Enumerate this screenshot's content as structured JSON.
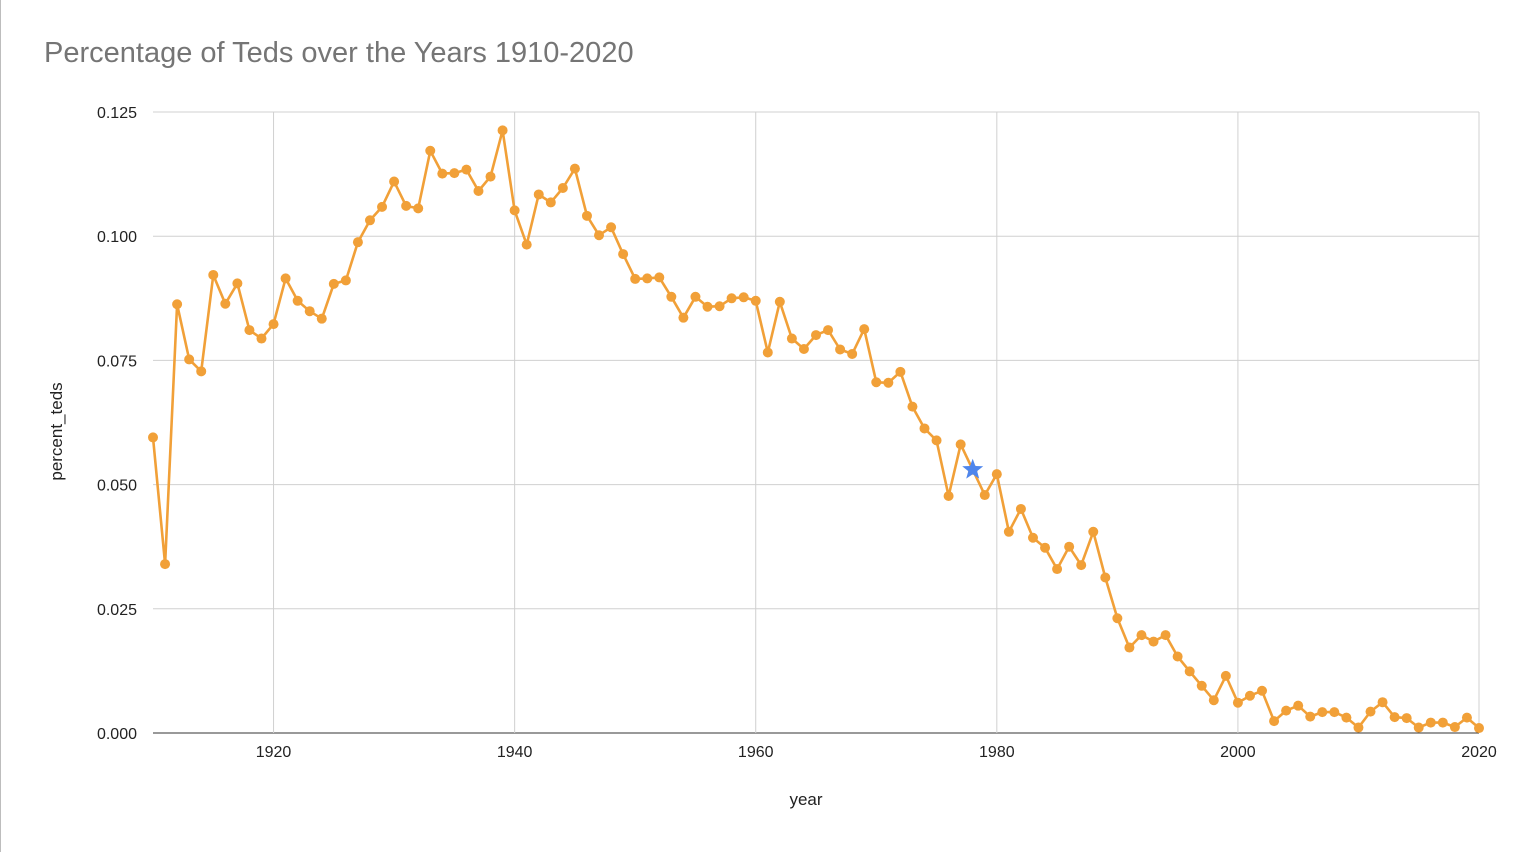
{
  "chart_data": {
    "type": "line",
    "title": "Percentage of Teds over the Years 1910-2020",
    "xlabel": "year",
    "ylabel": "percent_teds",
    "xlim": [
      1910,
      2020
    ],
    "ylim": [
      0,
      0.125
    ],
    "x_ticks": [
      1920,
      1940,
      1960,
      1980,
      2000,
      2020
    ],
    "x_tick_labels": [
      "1920",
      "1940",
      "1960",
      "1980",
      "2000",
      "2020"
    ],
    "y_ticks": [
      0,
      0.025,
      0.05,
      0.075,
      0.1,
      0.125
    ],
    "y_tick_labels": [
      "0.000",
      "0.025",
      "0.050",
      "0.075",
      "0.100",
      "0.125"
    ],
    "grid": true,
    "legend": "none",
    "series": [
      {
        "color": "#F1A038",
        "marker": "circle",
        "x": [
          1910,
          1911,
          1912,
          1913,
          1914,
          1915,
          1916,
          1917,
          1918,
          1919,
          1920,
          1921,
          1922,
          1923,
          1924,
          1925,
          1926,
          1927,
          1928,
          1929,
          1930,
          1931,
          1932,
          1933,
          1934,
          1935,
          1936,
          1937,
          1938,
          1939,
          1940,
          1941,
          1942,
          1943,
          1944,
          1945,
          1946,
          1947,
          1948,
          1949,
          1950,
          1951,
          1952,
          1953,
          1954,
          1955,
          1956,
          1957,
          1958,
          1959,
          1960,
          1961,
          1962,
          1963,
          1964,
          1965,
          1966,
          1967,
          1968,
          1969,
          1970,
          1971,
          1972,
          1973,
          1974,
          1975,
          1976,
          1977,
          1978,
          1979,
          1980,
          1981,
          1982,
          1983,
          1984,
          1985,
          1986,
          1987,
          1988,
          1989,
          1990,
          1991,
          1992,
          1993,
          1994,
          1995,
          1996,
          1997,
          1998,
          1999,
          2000,
          2001,
          2002,
          2003,
          2004,
          2005,
          2006,
          2007,
          2008,
          2009,
          2010,
          2011,
          2012,
          2013,
          2014,
          2015,
          2016,
          2017,
          2018,
          2019,
          2020
        ],
        "y": [
          0.0595,
          0.034,
          0.0863,
          0.0752,
          0.0728,
          0.0922,
          0.0864,
          0.0905,
          0.0811,
          0.0794,
          0.0823,
          0.0915,
          0.087,
          0.0849,
          0.0834,
          0.0904,
          0.0911,
          0.0988,
          0.1032,
          0.1059,
          0.111,
          0.1061,
          0.1056,
          0.1172,
          0.1126,
          0.1127,
          0.1134,
          0.1091,
          0.112,
          0.1213,
          0.1052,
          0.0983,
          0.1084,
          0.1068,
          0.1097,
          0.1136,
          0.1041,
          0.1002,
          0.1018,
          0.0964,
          0.0914,
          0.0915,
          0.0917,
          0.0878,
          0.0836,
          0.0878,
          0.0858,
          0.0859,
          0.0875,
          0.0877,
          0.087,
          0.0766,
          0.0868,
          0.0794,
          0.0773,
          0.0801,
          0.0811,
          0.0772,
          0.0763,
          0.0813,
          0.0706,
          0.0705,
          0.0727,
          0.0657,
          0.0613,
          0.0589,
          0.0477,
          0.0581,
          0.053,
          0.0479,
          0.0521,
          0.0405,
          0.0451,
          0.0393,
          0.0373,
          0.033,
          0.0375,
          0.0338,
          0.0405,
          0.0313,
          0.0231,
          0.0172,
          0.0197,
          0.0184,
          0.0197,
          0.0154,
          0.0124,
          0.0095,
          0.0066,
          0.0115,
          0.0061,
          0.0075,
          0.0085,
          0.0024,
          0.0045,
          0.0055,
          0.0033,
          0.0042,
          0.0042,
          0.0031,
          0.0011,
          0.0043,
          0.0062,
          0.0032,
          0.003,
          0.0011,
          0.0021,
          0.0021,
          0.0012,
          0.0031,
          0.001
        ]
      }
    ],
    "highlight": {
      "x": 1978,
      "y": 0.053,
      "color": "#4F86EC",
      "marker": "star"
    }
  }
}
